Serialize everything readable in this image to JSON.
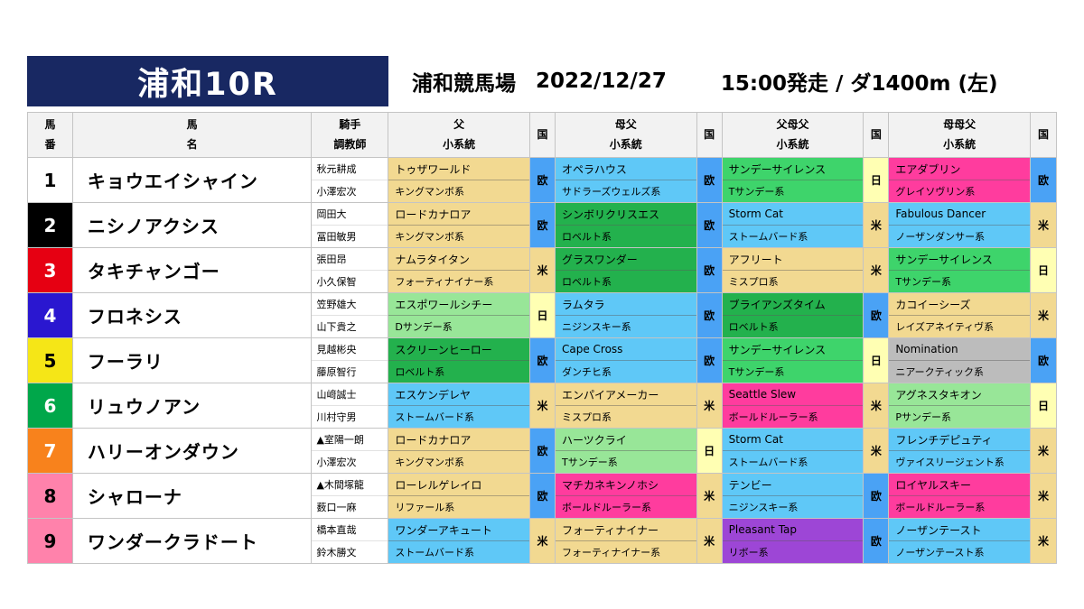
{
  "header": {
    "race": "浦和10R",
    "venue": "浦和競馬場",
    "date": "2022/12/27",
    "start": "15:00発走 / ダ1400m (左)",
    "title_bg": "#182862"
  },
  "country_colors": {
    "欧": "#4aa2f5",
    "米": "#f2d991",
    "日": "#ffffb3"
  },
  "table": {
    "headers": {
      "num": [
        "馬",
        "番"
      ],
      "name": [
        "馬",
        "名"
      ],
      "jockey": [
        "騎手",
        "調教師"
      ],
      "sire": [
        "父",
        "小系統"
      ],
      "damsire": [
        "母父",
        "小系統"
      ],
      "sdsire": [
        "父母父",
        "小系統"
      ],
      "ddsire": [
        "母母父",
        "小系統"
      ],
      "country": "国"
    },
    "rows": [
      {
        "num": "1",
        "num_bg": "#ffffff",
        "num_fg": "#000000",
        "name": "キョウエイシャイン",
        "jockey": "秋元耕成",
        "trainer": "小澤宏次",
        "sire": {
          "name": "トゥザワールド",
          "line": "キングマンボ系",
          "bg": "#f2d991",
          "country": "欧"
        },
        "damsire": {
          "name": "オペラハウス",
          "line": "サドラーズウェルズ系",
          "bg": "#5fc8f7",
          "country": "欧"
        },
        "sdsire": {
          "name": "サンデーサイレンス",
          "line": "Tサンデー系",
          "bg": "#3ed46b",
          "country": "日"
        },
        "ddsire": {
          "name": "エアダブリン",
          "line": "グレイソヴリン系",
          "bg": "#ff3c9e",
          "country": "欧"
        }
      },
      {
        "num": "2",
        "num_bg": "#000000",
        "num_fg": "#ffffff",
        "name": "ニシノアクシス",
        "jockey": "岡田大",
        "trainer": "冨田敏男",
        "sire": {
          "name": "ロードカナロア",
          "line": "キングマンボ系",
          "bg": "#f2d991",
          "country": "欧"
        },
        "damsire": {
          "name": "シンボリクリスエス",
          "line": "ロベルト系",
          "bg": "#23b14d",
          "country": "欧"
        },
        "sdsire": {
          "name": "Storm Cat",
          "line": "ストームバード系",
          "bg": "#5fc8f7",
          "country": "米"
        },
        "ddsire": {
          "name": "Fabulous Dancer",
          "line": "ノーザンダンサー系",
          "bg": "#5fc8f7",
          "country": "米"
        }
      },
      {
        "num": "3",
        "num_bg": "#e60012",
        "num_fg": "#ffffff",
        "name": "タキチャンゴー",
        "jockey": "張田昂",
        "trainer": "小久保智",
        "sire": {
          "name": "ナムラタイタン",
          "line": "フォーティナイナー系",
          "bg": "#f2d991",
          "country": "米"
        },
        "damsire": {
          "name": "グラスワンダー",
          "line": "ロベルト系",
          "bg": "#23b14d",
          "country": "欧"
        },
        "sdsire": {
          "name": "アフリート",
          "line": "ミスプロ系",
          "bg": "#f2d991",
          "country": "米"
        },
        "ddsire": {
          "name": "サンデーサイレンス",
          "line": "Tサンデー系",
          "bg": "#3ed46b",
          "country": "日"
        }
      },
      {
        "num": "4",
        "num_bg": "#2a17d0",
        "num_fg": "#ffffff",
        "name": "フロネシス",
        "jockey": "笠野雄大",
        "trainer": "山下貴之",
        "sire": {
          "name": "エスポワールシチー",
          "line": "Dサンデー系",
          "bg": "#98e698",
          "country": "日"
        },
        "damsire": {
          "name": "ラムタラ",
          "line": "ニジンスキー系",
          "bg": "#5fc8f7",
          "country": "欧"
        },
        "sdsire": {
          "name": "ブライアンズタイム",
          "line": "ロベルト系",
          "bg": "#23b14d",
          "country": "欧"
        },
        "ddsire": {
          "name": "カコイーシーズ",
          "line": "レイズアネイティヴ系",
          "bg": "#f2d991",
          "country": "米"
        }
      },
      {
        "num": "5",
        "num_bg": "#f5e617",
        "num_fg": "#000000",
        "name": "フーラリ",
        "jockey": "見越彬央",
        "trainer": "藤原智行",
        "sire": {
          "name": "スクリーンヒーロー",
          "line": "ロベルト系",
          "bg": "#23b14d",
          "country": "欧"
        },
        "damsire": {
          "name": "Cape Cross",
          "line": "ダンチヒ系",
          "bg": "#5fc8f7",
          "country": "欧"
        },
        "sdsire": {
          "name": "サンデーサイレンス",
          "line": "Tサンデー系",
          "bg": "#3ed46b",
          "country": "日"
        },
        "ddsire": {
          "name": "Nomination",
          "line": "ニアークティック系",
          "bg": "#bcbcbc",
          "country": "欧"
        }
      },
      {
        "num": "6",
        "num_bg": "#00a74a",
        "num_fg": "#ffffff",
        "name": "リュウノアン",
        "jockey": "山﨑誠士",
        "trainer": "川村守男",
        "sire": {
          "name": "エスケンデレヤ",
          "line": "ストームバード系",
          "bg": "#5fc8f7",
          "country": "米"
        },
        "damsire": {
          "name": "エンパイアメーカー",
          "line": "ミスプロ系",
          "bg": "#f2d991",
          "country": "米"
        },
        "sdsire": {
          "name": "Seattle Slew",
          "line": "ボールドルーラー系",
          "bg": "#ff3c9e",
          "country": "米"
        },
        "ddsire": {
          "name": "アグネスタキオン",
          "line": "Pサンデー系",
          "bg": "#98e698",
          "country": "日"
        }
      },
      {
        "num": "7",
        "num_bg": "#f8821c",
        "num_fg": "#ffffff",
        "name": "ハリーオンダウン",
        "jockey": "▲室陽一朗",
        "trainer": "小澤宏次",
        "sire": {
          "name": "ロードカナロア",
          "line": "キングマンボ系",
          "bg": "#f2d991",
          "country": "欧"
        },
        "damsire": {
          "name": "ハーツクライ",
          "line": "Tサンデー系",
          "bg": "#98e698",
          "country": "日"
        },
        "sdsire": {
          "name": "Storm Cat",
          "line": "ストームバード系",
          "bg": "#5fc8f7",
          "country": "米"
        },
        "ddsire": {
          "name": "フレンチデピュティ",
          "line": "ヴァイスリージェント系",
          "bg": "#5fc8f7",
          "country": "米"
        }
      },
      {
        "num": "8",
        "num_bg": "#ff82ab",
        "num_fg": "#000000",
        "name": "シャローナ",
        "jockey": "▲木間塚龍",
        "trainer": "薮口一麻",
        "sire": {
          "name": "ローレルゲレイロ",
          "line": "リファール系",
          "bg": "#f2d991",
          "country": "欧"
        },
        "damsire": {
          "name": "マチカネキンノホシ",
          "line": "ボールドルーラー系",
          "bg": "#ff3c9e",
          "country": "米"
        },
        "sdsire": {
          "name": "テンビー",
          "line": "ニジンスキー系",
          "bg": "#5fc8f7",
          "country": "欧"
        },
        "ddsire": {
          "name": "ロイヤルスキー",
          "line": "ボールドルーラー系",
          "bg": "#ff3c9e",
          "country": "米"
        }
      },
      {
        "num": "9",
        "num_bg": "#ff82ab",
        "num_fg": "#000000",
        "name": "ワンダークラドート",
        "jockey": "橋本直哉",
        "trainer": "鈴木勝文",
        "sire": {
          "name": "ワンダーアキュート",
          "line": "ストームバード系",
          "bg": "#5fc8f7",
          "country": "米"
        },
        "damsire": {
          "name": "フォーティナイナー",
          "line": "フォーティナイナー系",
          "bg": "#f2d991",
          "country": "米"
        },
        "sdsire": {
          "name": "Pleasant Tap",
          "line": "リボー系",
          "bg": "#9d46d6",
          "country": "欧"
        },
        "ddsire": {
          "name": "ノーザンテースト",
          "line": "ノーザンテースト系",
          "bg": "#5fc8f7",
          "country": "米"
        }
      }
    ]
  }
}
